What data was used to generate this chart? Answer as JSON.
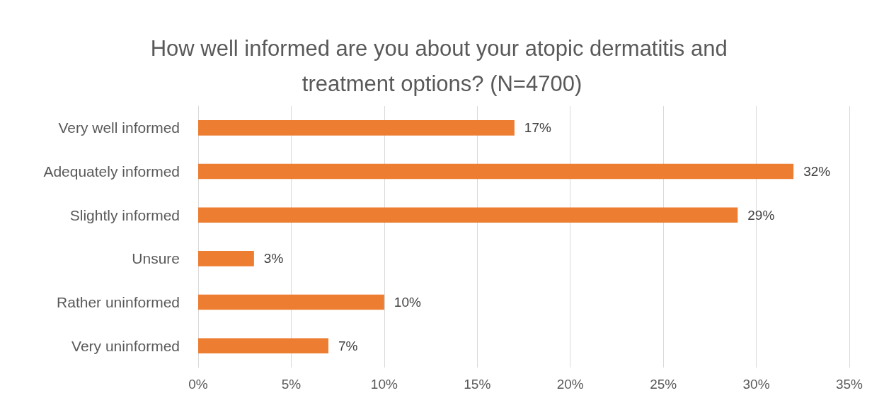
{
  "chart_data": {
    "type": "bar",
    "orientation": "horizontal",
    "title": "How well informed are you about your atopic dermatitis and treatment options? (N=4700)",
    "categories": [
      "Very well informed",
      "Adequately informed",
      "Slightly informed",
      "Unsure",
      "Rather uninformed",
      "Very uninformed"
    ],
    "values": [
      17,
      32,
      29,
      3,
      10,
      7
    ],
    "value_labels": [
      "17%",
      "32%",
      "29%",
      "3%",
      "10%",
      "7%"
    ],
    "color": "#ed7d31",
    "xlim": [
      0,
      35
    ],
    "xticks": [
      {
        "value": 0,
        "label": "0%"
      },
      {
        "value": 5,
        "label": "5%"
      },
      {
        "value": 10,
        "label": "10%"
      },
      {
        "value": 15,
        "label": "15%"
      },
      {
        "value": 20,
        "label": "20%"
      },
      {
        "value": 25,
        "label": "25%"
      },
      {
        "value": 30,
        "label": "30%"
      },
      {
        "value": 35,
        "label": "35%"
      }
    ],
    "grid": "x"
  }
}
